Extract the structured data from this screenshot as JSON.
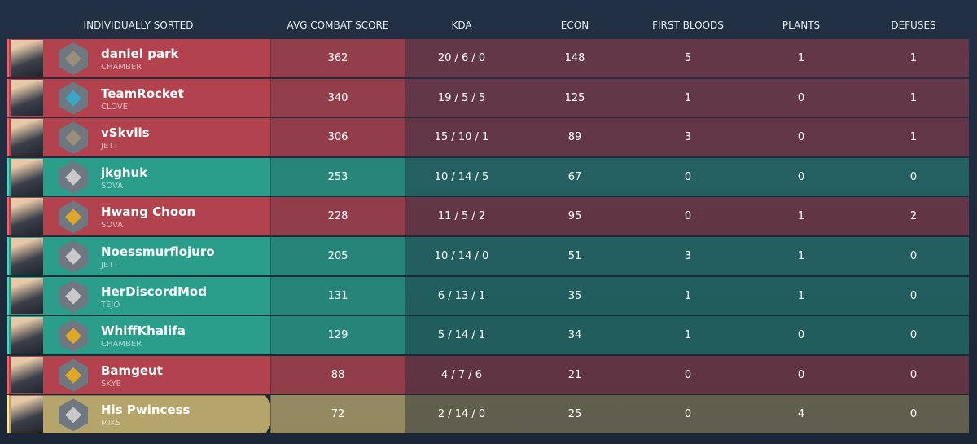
{
  "header": {
    "columns": [
      "INDIVIDUALLY SORTED",
      "AVG COMBAT SCORE",
      "KDA",
      "ECON",
      "FIRST BLOODS",
      "PLANTS",
      "DEFUSES"
    ]
  },
  "table": {
    "rows": [
      {
        "player": "daniel park",
        "agent": "CHAMBER",
        "acs": 362,
        "kda": "20 / 6 / 0",
        "econ": 148,
        "first_bloods": 5,
        "plants": 1,
        "defuses": 1,
        "color": "#b3424f",
        "rank_color": "#9a8f7a"
      },
      {
        "player": "TeamRocket",
        "agent": "CLOVE",
        "acs": 340,
        "kda": "19 / 5 / 5",
        "econ": 125,
        "first_bloods": 1,
        "plants": 0,
        "defuses": 1,
        "color": "#b3424f",
        "rank_color": "#3aa6c9"
      },
      {
        "player": "vSkvlls",
        "agent": "JETT",
        "acs": 306,
        "kda": "15 / 10 / 1",
        "econ": 89,
        "first_bloods": 3,
        "plants": 0,
        "defuses": 1,
        "color": "#b3424f",
        "rank_color": "#9a8f7a"
      },
      {
        "player": "jkghuk",
        "agent": "SOVA",
        "acs": 253,
        "kda": "10 / 14 / 5",
        "econ": 67,
        "first_bloods": 0,
        "plants": 0,
        "defuses": 0,
        "color": "#2a9e8b",
        "rank_color": "#c9c9c9"
      },
      {
        "player": "Hwang Choon",
        "agent": "SOVA",
        "acs": 228,
        "kda": "11 / 5 / 2",
        "econ": 95,
        "first_bloods": 0,
        "plants": 1,
        "defuses": 2,
        "color": "#b3424f",
        "rank_color": "#e0a62a"
      },
      {
        "player": "Noessmurflojuro",
        "agent": "JETT",
        "acs": 205,
        "kda": "10 / 14 / 0",
        "econ": 51,
        "first_bloods": 3,
        "plants": 1,
        "defuses": 0,
        "color": "#2a9e8b",
        "rank_color": "#c9c9c9"
      },
      {
        "player": "HerDiscordMod",
        "agent": "TEJO",
        "acs": 131,
        "kda": "6 / 13 / 1",
        "econ": 35,
        "first_bloods": 1,
        "plants": 1,
        "defuses": 0,
        "color": "#2a9e8b",
        "rank_color": "#c9c9c9"
      },
      {
        "player": "WhiffKhalifa",
        "agent": "CHAMBER",
        "acs": 129,
        "kda": "5 / 14 / 1",
        "econ": 34,
        "first_bloods": 1,
        "plants": 0,
        "defuses": 0,
        "color": "#2a9e8b",
        "rank_color": "#e0a62a"
      },
      {
        "player": "Bamgeut",
        "agent": "SKYE",
        "acs": 88,
        "kda": "4 / 7 / 6",
        "econ": 21,
        "first_bloods": 0,
        "plants": 0,
        "defuses": 0,
        "color": "#b3424f",
        "rank_color": "#e0a62a"
      },
      {
        "player": "His Pwincess",
        "agent": "MIKS",
        "acs": 72,
        "kda": "2 / 14 / 0",
        "econ": 25,
        "first_bloods": 0,
        "plants": 4,
        "defuses": 0,
        "color": "#b5a56a",
        "rank_color": "#c9c9c9"
      }
    ]
  }
}
